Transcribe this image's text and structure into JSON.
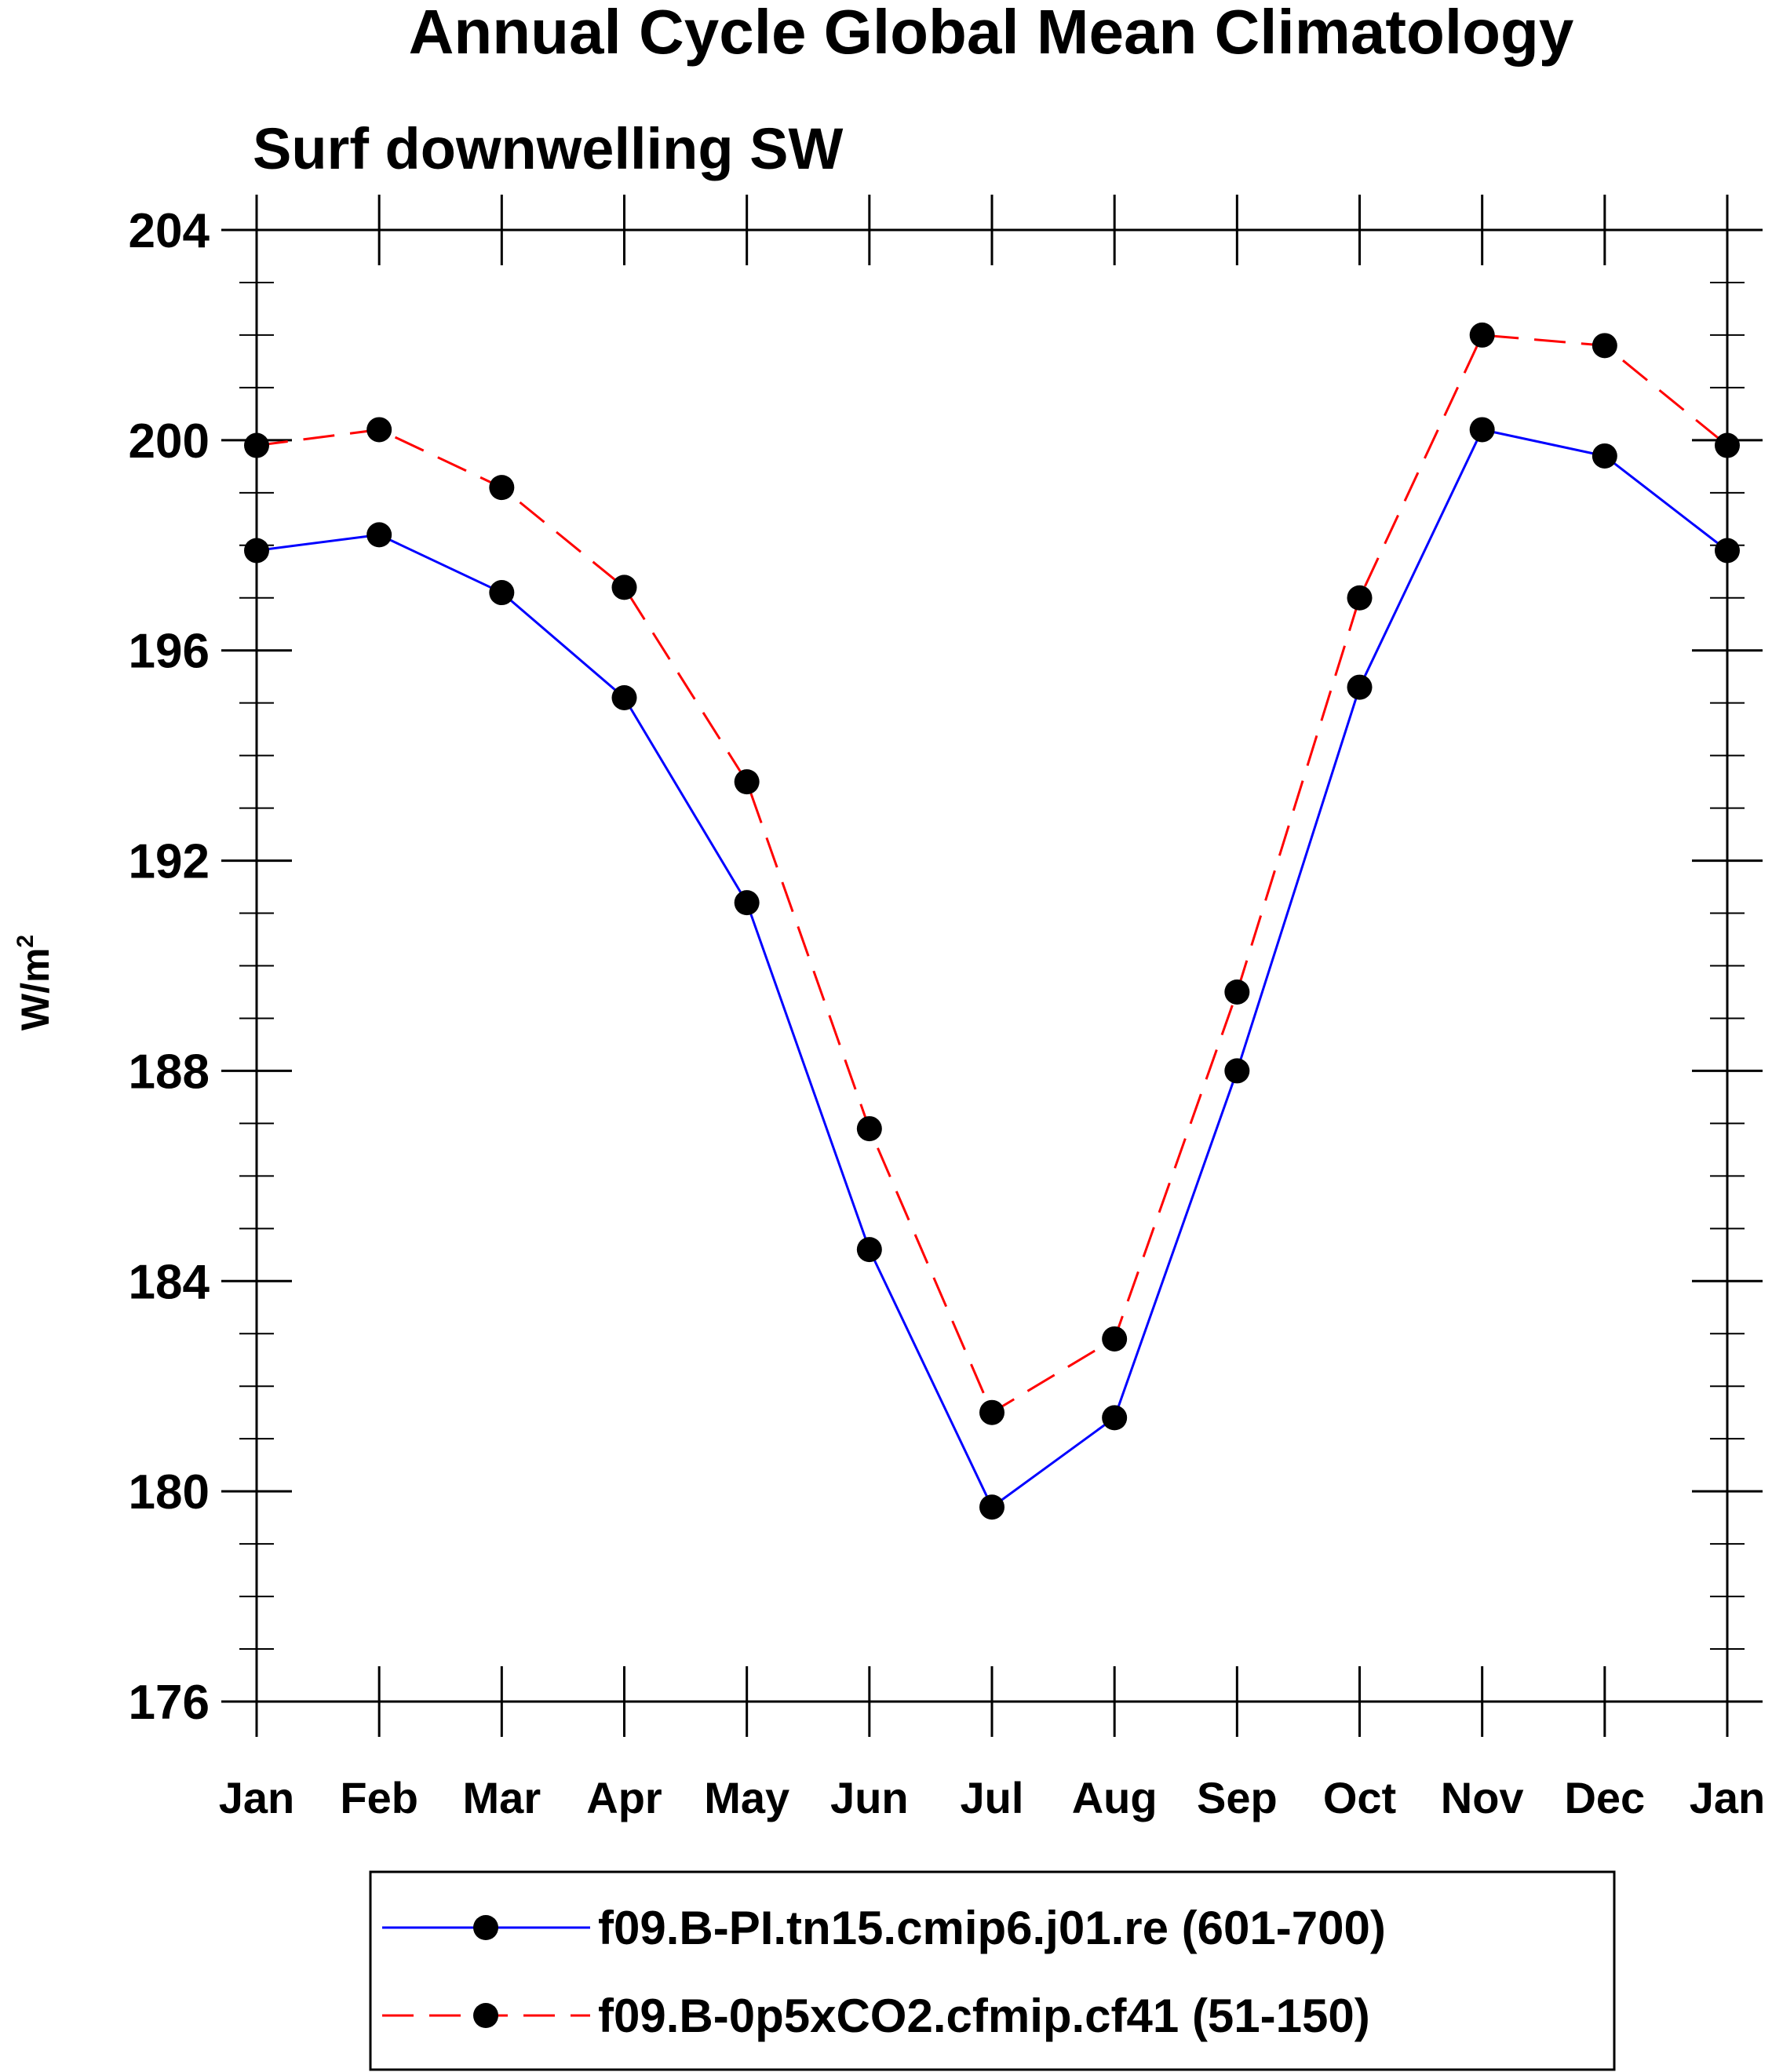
{
  "chart_data": {
    "type": "line",
    "title": "Annual Cycle Global Mean Climatology",
    "subtitle": "Surf downwelling SW",
    "ylabel": "W/m",
    "ylabel_sup": "2",
    "xlabel": "",
    "categories": [
      "Jan",
      "Feb",
      "Mar",
      "Apr",
      "May",
      "Jun",
      "Jul",
      "Aug",
      "Sep",
      "Oct",
      "Nov",
      "Dec",
      "Jan"
    ],
    "ylim": [
      176,
      204
    ],
    "yticks": [
      176,
      180,
      184,
      188,
      192,
      196,
      200,
      204
    ],
    "y_minor_step": 1,
    "series": [
      {
        "name": "f09.B-PI.tn15.cmip6.j01.re (601-700)",
        "color": "#0000ff",
        "dash": "solid",
        "marker": "filled-circle",
        "values": [
          197.9,
          198.2,
          197.1,
          195.1,
          191.2,
          184.6,
          179.7,
          181.4,
          188.0,
          195.3,
          200.2,
          199.7,
          197.9
        ]
      },
      {
        "name": "f09.B-0p5xCO2.cfmip.cf41 (51-150)",
        "color": "#ff0000",
        "dash": "dashed",
        "marker": "filled-circle",
        "values": [
          199.9,
          200.2,
          199.1,
          197.2,
          193.5,
          186.9,
          181.5,
          182.9,
          189.5,
          197.0,
          202.0,
          201.8,
          199.9
        ]
      }
    ],
    "grid": false,
    "legend_position": "bottom"
  }
}
